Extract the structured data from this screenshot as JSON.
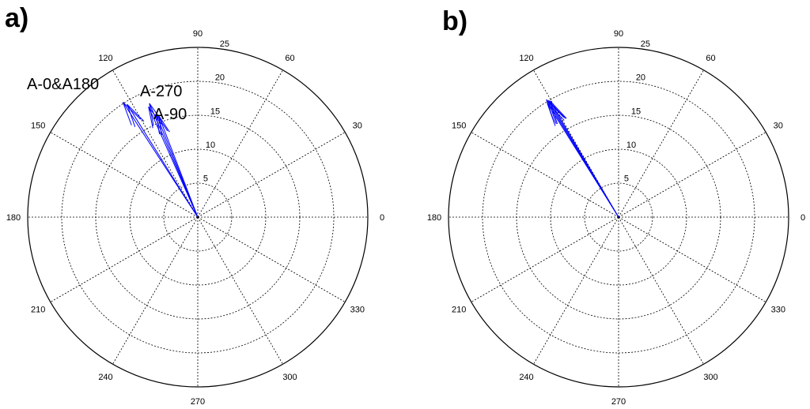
{
  "chart_data": [
    {
      "type": "polar-compass",
      "panel_label": "a)",
      "angle_ticks": [
        "0",
        "30",
        "60",
        "90",
        "120",
        "150",
        "180",
        "210",
        "240",
        "270",
        "300",
        "330"
      ],
      "r_ticks": [
        "5",
        "10",
        "15",
        "20",
        "25"
      ],
      "rlim": [
        0,
        25
      ],
      "grid": true,
      "series_color": "#0000ff",
      "series": [
        {
          "name": "A-0&A180",
          "angle_deg": 123,
          "magnitude": 20.2
        },
        {
          "name": "A-0&A180",
          "angle_deg": 122,
          "magnitude": 19.6
        },
        {
          "name": "A-270",
          "angle_deg": 113,
          "magnitude": 18.2
        },
        {
          "name": "A-270",
          "angle_deg": 114,
          "magnitude": 17.8
        },
        {
          "name": "A-90",
          "angle_deg": 112,
          "magnitude": 16.3
        },
        {
          "name": "A-90",
          "angle_deg": 111,
          "magnitude": 16.0
        }
      ],
      "annotations": [
        {
          "text": "A-0&A180"
        },
        {
          "text": "A-270"
        },
        {
          "text": "A-90"
        }
      ]
    },
    {
      "type": "polar-compass",
      "panel_label": "b)",
      "angle_ticks": [
        "0",
        "30",
        "60",
        "90",
        "120",
        "150",
        "180",
        "210",
        "240",
        "270",
        "300",
        "330"
      ],
      "r_ticks": [
        "5",
        "10",
        "15",
        "20",
        "25"
      ],
      "rlim": [
        0,
        25
      ],
      "grid": true,
      "series_color": "#0000ff",
      "series": [
        {
          "angle_deg": 121,
          "magnitude": 20.0
        },
        {
          "angle_deg": 121.5,
          "magnitude": 20.3
        },
        {
          "angle_deg": 122,
          "magnitude": 19.8
        },
        {
          "angle_deg": 120.5,
          "magnitude": 19.9
        }
      ],
      "annotations": []
    }
  ]
}
